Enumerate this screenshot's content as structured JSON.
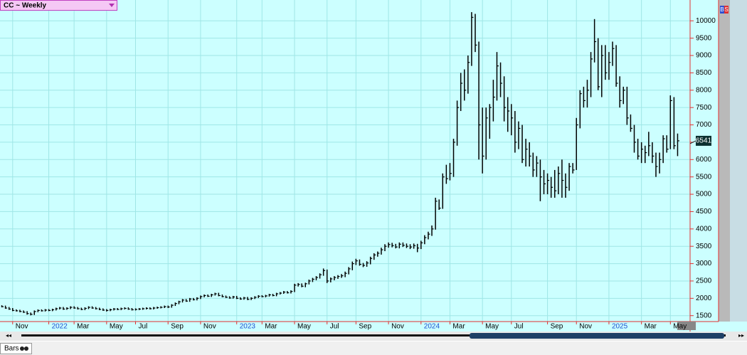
{
  "chart_data": {
    "type": "hlc",
    "title": "CC ~ Weekly",
    "color": "#000000",
    "year_label_color": "#1f4fd1",
    "grid": true,
    "categories": [
      null,
      null,
      null,
      "Nov",
      null,
      null,
      null,
      null,
      null,
      null,
      null,
      null,
      null,
      "2022",
      null,
      null,
      null,
      null,
      null,
      null,
      "Mar",
      null,
      null,
      null,
      null,
      null,
      null,
      null,
      null,
      "May",
      null,
      null,
      null,
      null,
      null,
      null,
      null,
      "Jul",
      null,
      null,
      null,
      null,
      null,
      null,
      null,
      null,
      "Sep",
      null,
      null,
      null,
      null,
      null,
      null,
      null,
      null,
      "Nov",
      null,
      null,
      null,
      null,
      null,
      null,
      null,
      null,
      null,
      "2023",
      null,
      null,
      null,
      null,
      null,
      null,
      "Mar",
      null,
      null,
      null,
      null,
      null,
      null,
      null,
      null,
      "May",
      null,
      null,
      null,
      null,
      null,
      null,
      null,
      null,
      "Jul",
      null,
      null,
      null,
      null,
      null,
      null,
      null,
      "Sep",
      null,
      null,
      null,
      null,
      null,
      null,
      null,
      null,
      "Nov",
      null,
      null,
      null,
      null,
      null,
      null,
      null,
      null,
      "2024",
      null,
      null,
      null,
      null,
      null,
      null,
      null,
      "Mar",
      null,
      null,
      null,
      null,
      null,
      null,
      null,
      null,
      "May",
      null,
      null,
      null,
      null,
      null,
      null,
      null,
      "Jul",
      null,
      null,
      null,
      null,
      null,
      null,
      null,
      null,
      null,
      "Sep",
      null,
      null,
      null,
      null,
      null,
      null,
      null,
      "Nov",
      null,
      null,
      null,
      null,
      null,
      null,
      null,
      null,
      "2025",
      null,
      null,
      null,
      null,
      null,
      null,
      null,
      null,
      "Mar",
      null,
      null,
      null,
      null,
      null,
      null,
      null,
      "May",
      null,
      null
    ],
    "high": [
      1800,
      1790,
      1750,
      1720,
      1680,
      1670,
      1650,
      1630,
      1590,
      1650,
      1680,
      1680,
      1690,
      1690,
      1700,
      1730,
      1750,
      1750,
      1740,
      1770,
      1770,
      1750,
      1730,
      1740,
      1770,
      1770,
      1750,
      1730,
      1710,
      1690,
      1700,
      1720,
      1720,
      1730,
      1740,
      1740,
      1720,
      1710,
      1720,
      1730,
      1740,
      1740,
      1750,
      1760,
      1770,
      1790,
      1790,
      1830,
      1880,
      1930,
      1980,
      1980,
      2010,
      2010,
      2030,
      2080,
      2110,
      2110,
      2130,
      2160,
      2160,
      2110,
      2080,
      2060,
      2070,
      2070,
      2030,
      2040,
      2040,
      2030,
      2060,
      2090,
      2090,
      2100,
      2130,
      2130,
      2160,
      2180,
      2210,
      2210,
      2230,
      2420,
      2440,
      2430,
      2450,
      2540,
      2590,
      2640,
      2720,
      2860,
      2830,
      2600,
      2640,
      2670,
      2700,
      2770,
      2900,
      3060,
      3140,
      3120,
      3020,
      3070,
      3200,
      3300,
      3350,
      3460,
      3560,
      3610,
      3600,
      3570,
      3610,
      3610,
      3580,
      3560,
      3580,
      3570,
      3660,
      3820,
      3920,
      4100,
      4900,
      4850,
      5600,
      5850,
      5900,
      6600,
      7700,
      8500,
      8600,
      9000,
      10250,
      10200,
      9400,
      7500,
      7500,
      7600,
      8300,
      9100,
      8800,
      8400,
      7800,
      7600,
      7400,
      7100,
      7000,
      6600,
      6500,
      6200,
      6100,
      6000,
      5700,
      5600,
      5500,
      5700,
      5800,
      6000,
      5600,
      5900,
      5900,
      7200,
      8000,
      8100,
      8300,
      9100,
      10050,
      9500,
      9300,
      9300,
      9100,
      9400,
      9300,
      8400,
      8100,
      8100,
      7300,
      7000,
      6600,
      6500,
      6400,
      6800,
      6500,
      6200,
      6200,
      6700,
      6700,
      7850,
      7800,
      6750
    ],
    "low": [
      1740,
      1700,
      1670,
      1630,
      1620,
      1600,
      1580,
      1530,
      1510,
      1520,
      1600,
      1620,
      1620,
      1630,
      1630,
      1650,
      1680,
      1670,
      1670,
      1690,
      1700,
      1680,
      1660,
      1660,
      1690,
      1700,
      1680,
      1660,
      1640,
      1620,
      1630,
      1650,
      1660,
      1660,
      1680,
      1670,
      1650,
      1650,
      1660,
      1670,
      1680,
      1680,
      1680,
      1700,
      1710,
      1720,
      1720,
      1730,
      1780,
      1830,
      1880,
      1900,
      1900,
      1940,
      1940,
      1980,
      2030,
      2040,
      2040,
      2080,
      2060,
      2030,
      2010,
      1990,
      1990,
      1980,
      1960,
      1960,
      1950,
      1950,
      1980,
      2010,
      2030,
      2030,
      2050,
      2060,
      2060,
      2110,
      2130,
      2140,
      2140,
      2180,
      2340,
      2320,
      2320,
      2400,
      2470,
      2520,
      2570,
      2650,
      2440,
      2460,
      2520,
      2560,
      2590,
      2610,
      2690,
      2810,
      2960,
      2940,
      2900,
      2910,
      2980,
      3110,
      3200,
      3260,
      3360,
      3460,
      3470,
      3440,
      3440,
      3480,
      3450,
      3420,
      3430,
      3330,
      3420,
      3560,
      3700,
      3800,
      3980,
      4550,
      4580,
      5300,
      5400,
      5500,
      6400,
      7400,
      7700,
      7900,
      8700,
      9100,
      6000,
      5600,
      6000,
      6600,
      7100,
      7700,
      7800,
      7100,
      6800,
      6700,
      6200,
      6300,
      5900,
      5800,
      5800,
      5500,
      5500,
      4800,
      5000,
      5000,
      4900,
      4900,
      5000,
      4900,
      4900,
      5100,
      5600,
      5700,
      6900,
      7500,
      7500,
      7800,
      8800,
      8000,
      7800,
      8300,
      8300,
      8700,
      8100,
      7500,
      7600,
      7000,
      6800,
      6200,
      6000,
      5900,
      5900,
      6100,
      5900,
      5500,
      5600,
      5900,
      6200,
      6300,
      6300,
      6100
    ],
    "close": [
      1760,
      1720,
      1690,
      1650,
      1640,
      1620,
      1600,
      1560,
      1540,
      1620,
      1650,
      1640,
      1660,
      1650,
      1670,
      1700,
      1720,
      1690,
      1710,
      1740,
      1720,
      1700,
      1680,
      1710,
      1740,
      1720,
      1700,
      1680,
      1660,
      1650,
      1670,
      1690,
      1680,
      1700,
      1710,
      1690,
      1670,
      1680,
      1690,
      1700,
      1710,
      1700,
      1720,
      1730,
      1740,
      1760,
      1750,
      1800,
      1850,
      1900,
      1950,
      1920,
      1980,
      1960,
      2000,
      2050,
      2080,
      2060,
      2100,
      2130,
      2080,
      2050,
      2030,
      2010,
      2040,
      2000,
      1980,
      2010,
      1970,
      2000,
      2030,
      2060,
      2050,
      2070,
      2100,
      2080,
      2130,
      2150,
      2180,
      2160,
      2200,
      2380,
      2400,
      2350,
      2420,
      2500,
      2550,
      2600,
      2680,
      2800,
      2500,
      2560,
      2600,
      2630,
      2650,
      2720,
      2850,
      3000,
      3080,
      2980,
      2950,
      3020,
      3150,
      3250,
      3300,
      3400,
      3500,
      3550,
      3520,
      3480,
      3560,
      3530,
      3500,
      3480,
      3520,
      3450,
      3600,
      3750,
      3850,
      4000,
      4800,
      4600,
      5500,
      5450,
      5600,
      6500,
      7500,
      8200,
      8000,
      8800,
      10100,
      9300,
      7000,
      6100,
      7200,
      7500,
      7800,
      8700,
      8200,
      7500,
      7400,
      7200,
      6500,
      6900,
      6000,
      6300,
      6100,
      5700,
      5900,
      5500,
      5300,
      5400,
      5200,
      5100,
      5600,
      5400,
      5200,
      5800,
      5700,
      7000,
      7900,
      7700,
      8000,
      8900,
      9400,
      8100,
      9000,
      8500,
      8800,
      9200,
      8200,
      7700,
      8000,
      7200,
      6900,
      6500,
      6100,
      6300,
      6200,
      6400,
      6100,
      5800,
      6000,
      6600,
      6300,
      7700,
      6400,
      6541
    ],
    "ylim": [
      1330,
      10600
    ],
    "yticks": [
      1500,
      2000,
      2500,
      3000,
      3500,
      4000,
      4500,
      5000,
      5500,
      6000,
      6500,
      7000,
      7500,
      8000,
      8500,
      9000,
      9500,
      10000
    ]
  },
  "ui": {
    "tab": "Bars",
    "buttons": [
      "B",
      "S"
    ]
  }
}
